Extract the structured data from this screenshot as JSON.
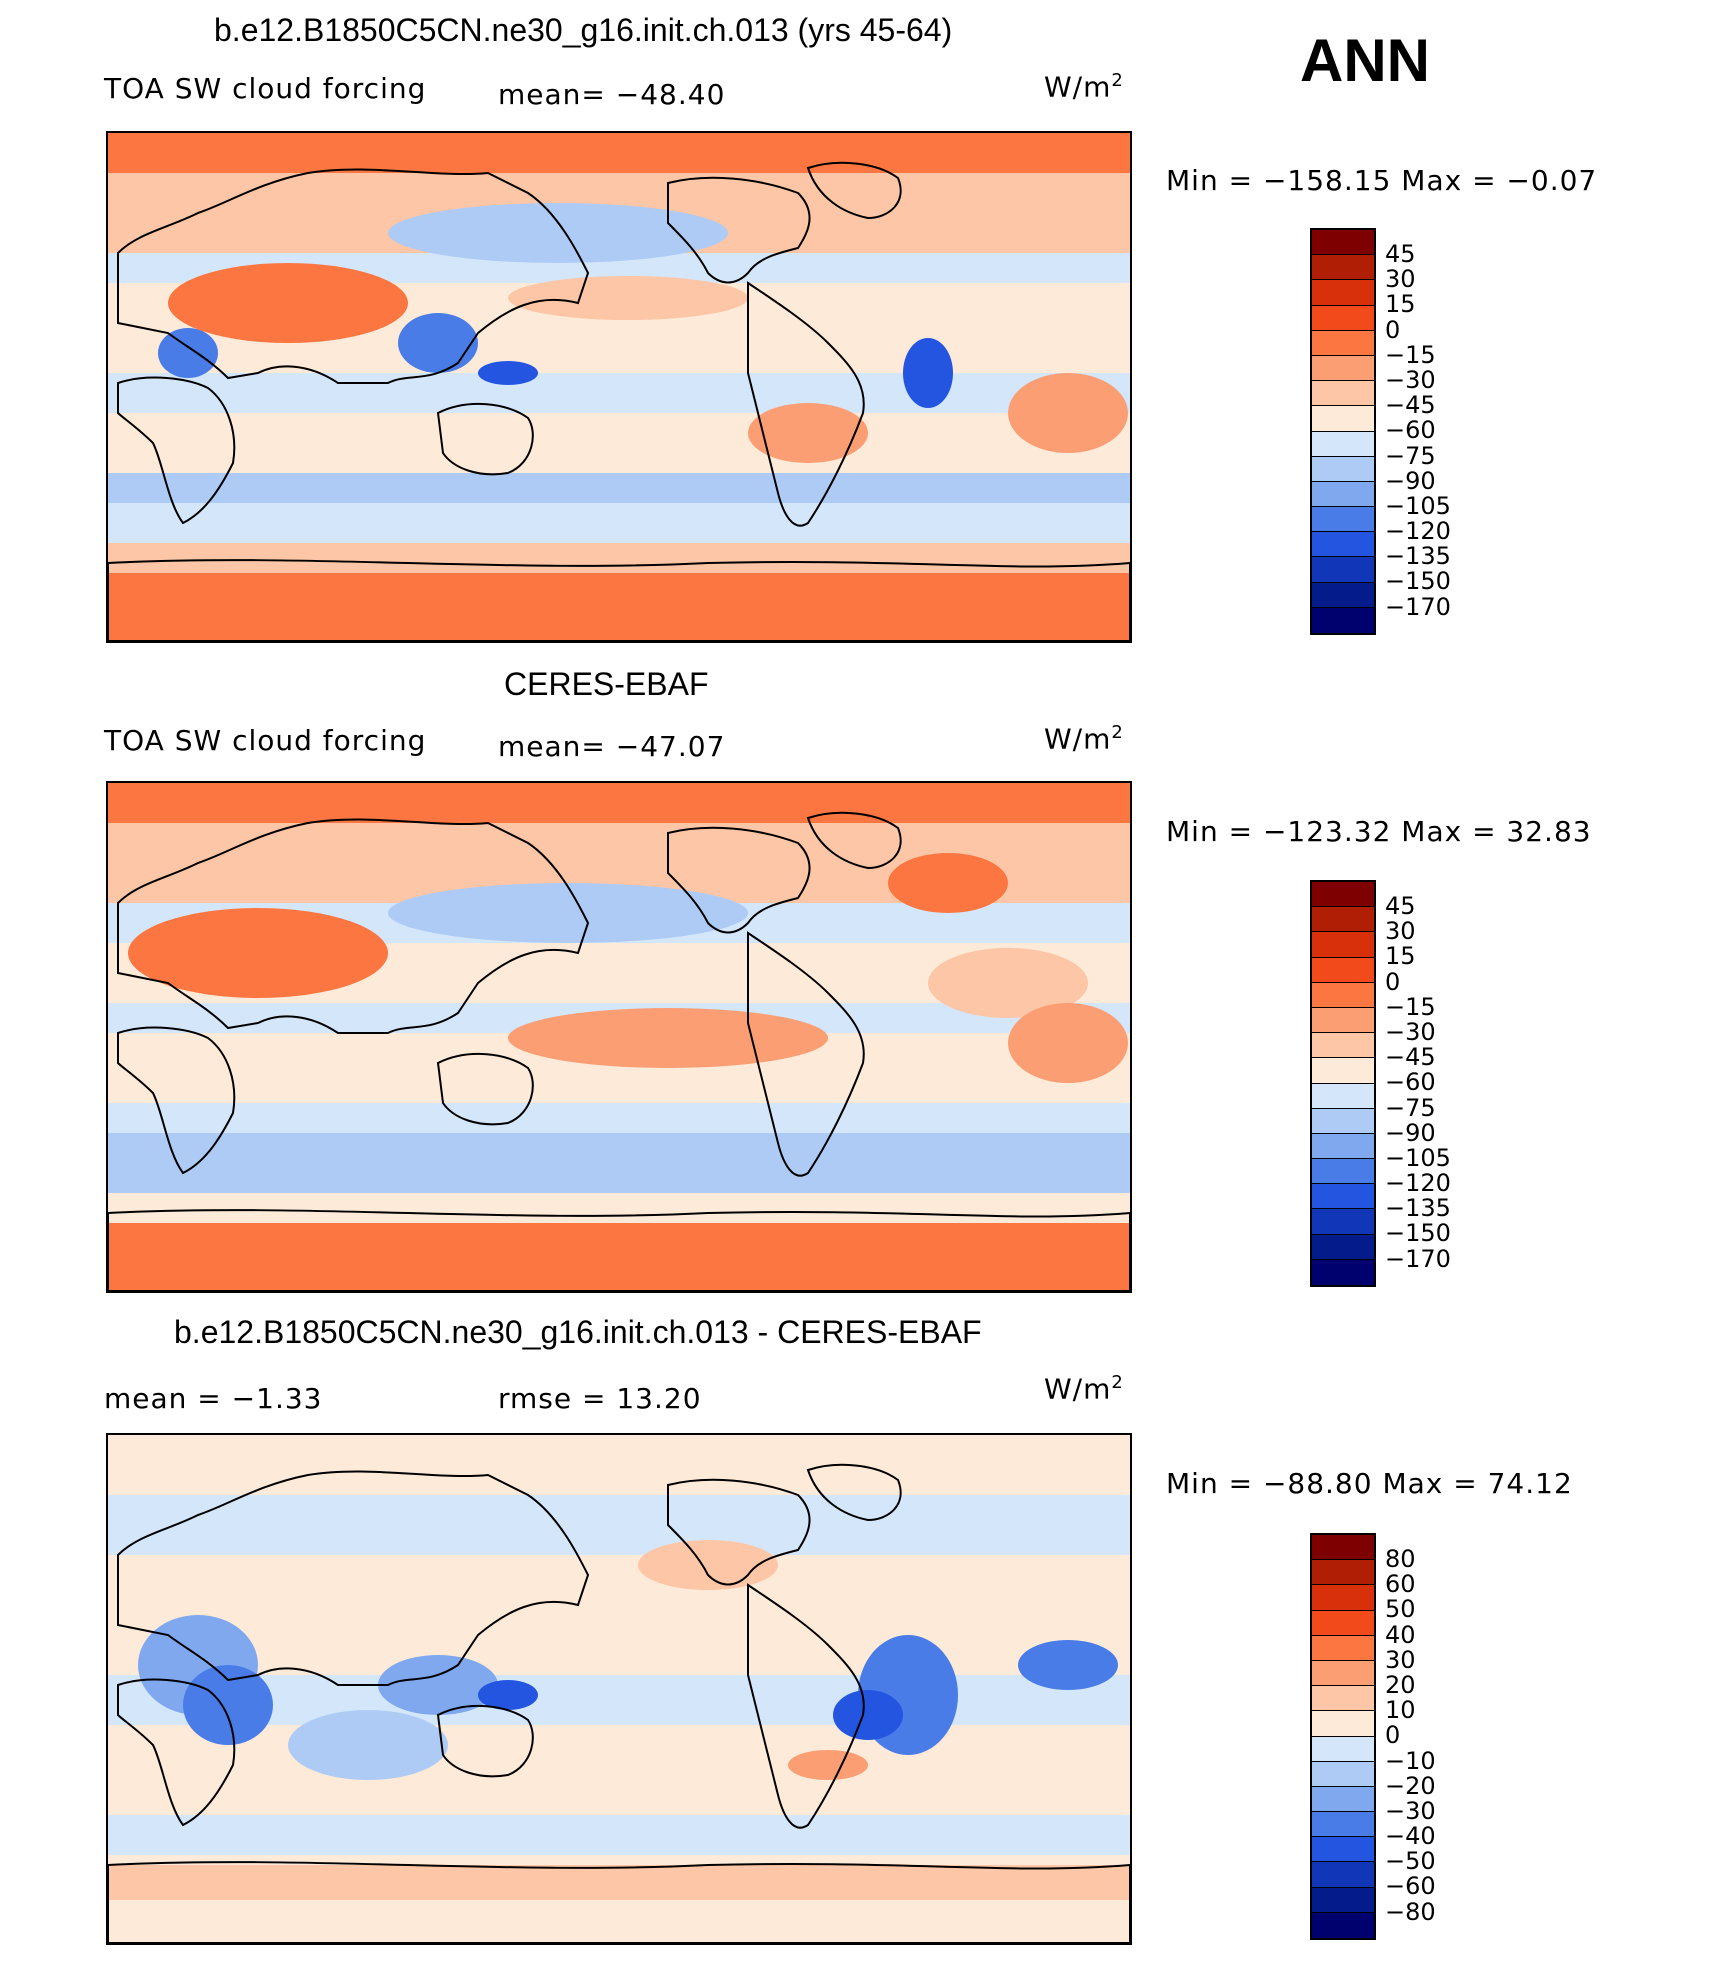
{
  "season": "ANN",
  "units": "W/m",
  "units_sup": "2",
  "panels": [
    {
      "title": "b.e12.B1850C5CN.ne30_g16.init.ch.013 (yrs 45-64)",
      "left_label": "TOA SW cloud forcing",
      "center_label": "mean=  −48.40",
      "minmax": "Min  =  −158.15  Max  =    −0.07",
      "levels": [
        "45",
        "30",
        "15",
        "0",
        "−15",
        "−30",
        "−45",
        "−60",
        "−75",
        "−90",
        "−105",
        "−120",
        "−135",
        "−150",
        "−170"
      ],
      "colors": [
        "#7f0000",
        "#b01e05",
        "#d8300a",
        "#f24a1a",
        "#fb7640",
        "#fc9e74",
        "#fdc6a6",
        "#feead8",
        "#d4e6fa",
        "#aecbf5",
        "#7fa8ef",
        "#4a7ce8",
        "#2455e0",
        "#1236b8",
        "#041b8c",
        "#00006e"
      ]
    },
    {
      "title": "CERES-EBAF",
      "left_label": "TOA SW cloud forcing",
      "center_label": "mean=  −47.07",
      "minmax": "Min  =  −123.32  Max  =    32.83",
      "levels": [
        "45",
        "30",
        "15",
        "0",
        "−15",
        "−30",
        "−45",
        "−60",
        "−75",
        "−90",
        "−105",
        "−120",
        "−135",
        "−150",
        "−170"
      ],
      "colors": [
        "#7f0000",
        "#b01e05",
        "#d8300a",
        "#f24a1a",
        "#fb7640",
        "#fc9e74",
        "#fdc6a6",
        "#feead8",
        "#d4e6fa",
        "#aecbf5",
        "#7fa8ef",
        "#4a7ce8",
        "#2455e0",
        "#1236b8",
        "#041b8c",
        "#00006e"
      ]
    },
    {
      "title": "b.e12.B1850C5CN.ne30_g16.init.ch.013 - CERES-EBAF",
      "left_label": "mean  =    −1.33",
      "center_label": "rmse  =    13.20",
      "minmax": "Min  =  −88.80  Max  =    74.12",
      "levels": [
        "80",
        "60",
        "50",
        "40",
        "30",
        "20",
        "10",
        "0",
        "−10",
        "−20",
        "−30",
        "−40",
        "−50",
        "−60",
        "−80"
      ],
      "colors": [
        "#7f0000",
        "#b01e05",
        "#d8300a",
        "#f24a1a",
        "#fb7640",
        "#fc9e74",
        "#fdc6a6",
        "#feead8",
        "#d4e6fa",
        "#aecbf5",
        "#7fa8ef",
        "#4a7ce8",
        "#2455e0",
        "#1236b8",
        "#041b8c",
        "#00006e"
      ]
    }
  ]
}
